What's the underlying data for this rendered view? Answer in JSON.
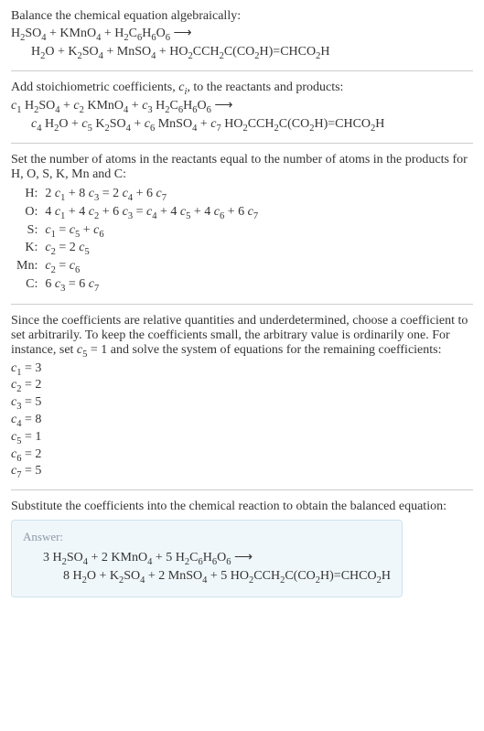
{
  "intro": {
    "balance_text": "Balance the chemical equation algebraically:",
    "eq1_left": "H<sub>2</sub>SO<sub>4</sub> + KMnO<sub>4</sub> + H<sub>2</sub>C<sub>6</sub>H<sub>6</sub>O<sub>6</sub> ⟶",
    "eq1_right": "H<sub>2</sub>O + K<sub>2</sub>SO<sub>4</sub> + MnSO<sub>4</sub> + HO<sub>2</sub>CCH<sub>2</sub>C(CO<sub>2</sub>H)=CHCO<sub>2</sub>H"
  },
  "stoich": {
    "text": "Add stoichiometric coefficients, <span class=\"italic\">c<sub>i</sub></span>, to the reactants and products:",
    "eq_left": "<span class=\"italic\">c</span><sub>1</sub> H<sub>2</sub>SO<sub>4</sub> + <span class=\"italic\">c</span><sub>2</sub> KMnO<sub>4</sub> + <span class=\"italic\">c</span><sub>3</sub> H<sub>2</sub>C<sub>6</sub>H<sub>6</sub>O<sub>6</sub> ⟶",
    "eq_right": "<span class=\"italic\">c</span><sub>4</sub> H<sub>2</sub>O + <span class=\"italic\">c</span><sub>5</sub> K<sub>2</sub>SO<sub>4</sub> + <span class=\"italic\">c</span><sub>6</sub> MnSO<sub>4</sub> + <span class=\"italic\">c</span><sub>7</sub> HO<sub>2</sub>CCH<sub>2</sub>C(CO<sub>2</sub>H)=CHCO<sub>2</sub>H"
  },
  "atoms": {
    "text": "Set the number of atoms in the reactants equal to the number of atoms in the products for H, O, S, K, Mn and C:",
    "rows": [
      {
        "el": "H:",
        "eq": "2 <span class=\"italic\">c</span><sub>1</sub> + 8 <span class=\"italic\">c</span><sub>3</sub> = 2 <span class=\"italic\">c</span><sub>4</sub> + 6 <span class=\"italic\">c</span><sub>7</sub>"
      },
      {
        "el": "O:",
        "eq": "4 <span class=\"italic\">c</span><sub>1</sub> + 4 <span class=\"italic\">c</span><sub>2</sub> + 6 <span class=\"italic\">c</span><sub>3</sub> = <span class=\"italic\">c</span><sub>4</sub> + 4 <span class=\"italic\">c</span><sub>5</sub> + 4 <span class=\"italic\">c</span><sub>6</sub> + 6 <span class=\"italic\">c</span><sub>7</sub>"
      },
      {
        "el": "S:",
        "eq": "<span class=\"italic\">c</span><sub>1</sub> = <span class=\"italic\">c</span><sub>5</sub> + <span class=\"italic\">c</span><sub>6</sub>"
      },
      {
        "el": "K:",
        "eq": "<span class=\"italic\">c</span><sub>2</sub> = 2 <span class=\"italic\">c</span><sub>5</sub>"
      },
      {
        "el": "Mn:",
        "eq": "<span class=\"italic\">c</span><sub>2</sub> = <span class=\"italic\">c</span><sub>6</sub>"
      },
      {
        "el": "C:",
        "eq": "6 <span class=\"italic\">c</span><sub>3</sub> = 6 <span class=\"italic\">c</span><sub>7</sub>"
      }
    ]
  },
  "solve": {
    "text": "Since the coefficients are relative quantities and underdetermined, choose a coefficient to set arbitrarily. To keep the coefficients small, the arbitrary value is ordinarily one. For instance, set <span class=\"italic\">c</span><sub>5</sub> = 1 and solve the system of equations for the remaining coefficients:",
    "coeffs": [
      "<span class=\"italic\">c</span><sub>1</sub> = 3",
      "<span class=\"italic\">c</span><sub>2</sub> = 2",
      "<span class=\"italic\">c</span><sub>3</sub> = 5",
      "<span class=\"italic\">c</span><sub>4</sub> = 8",
      "<span class=\"italic\">c</span><sub>5</sub> = 1",
      "<span class=\"italic\">c</span><sub>6</sub> = 2",
      "<span class=\"italic\">c</span><sub>7</sub> = 5"
    ]
  },
  "final": {
    "text": "Substitute the coefficients into the chemical reaction to obtain the balanced equation:",
    "answer_label": "Answer:",
    "eq_left": "3 H<sub>2</sub>SO<sub>4</sub> + 2 KMnO<sub>4</sub> + 5 H<sub>2</sub>C<sub>6</sub>H<sub>6</sub>O<sub>6</sub> ⟶",
    "eq_right": "8 H<sub>2</sub>O + K<sub>2</sub>SO<sub>4</sub> + 2 MnSO<sub>4</sub> + 5 HO<sub>2</sub>CCH<sub>2</sub>C(CO<sub>2</sub>H)=CHCO<sub>2</sub>H"
  },
  "colors": {
    "text": "#333333",
    "separator": "#cccccc",
    "answer_bg": "#f0f7fb",
    "answer_border": "#cfe3ee",
    "answer_label": "#8a9aa6"
  }
}
